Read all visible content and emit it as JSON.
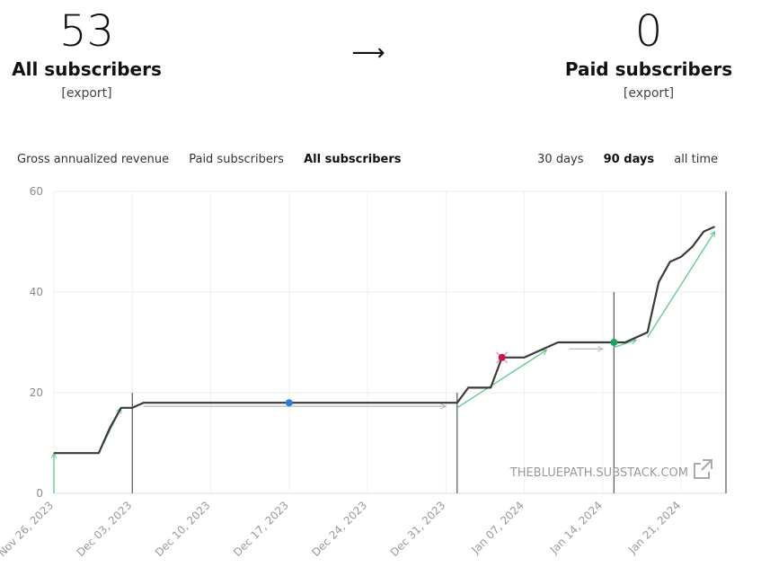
{
  "stats": {
    "all": {
      "value": "53",
      "label": "All subscribers",
      "export": "[export]"
    },
    "arrow": "⟶",
    "paid": {
      "value": "0",
      "label": "Paid subscribers",
      "export": "[export]"
    }
  },
  "tabs": [
    {
      "label": "Gross annualized revenue",
      "active": false
    },
    {
      "label": "Paid subscribers",
      "active": false
    },
    {
      "label": "All subscribers",
      "active": true
    }
  ],
  "ranges": [
    {
      "label": "30 days",
      "active": false
    },
    {
      "label": "90 days",
      "active": true
    },
    {
      "label": "all time",
      "active": false
    }
  ],
  "watermark": "THEBLUEPATH.SUBSTACK.COM",
  "colors": {
    "line": "#3a3a3a",
    "trend": "#5ec98a",
    "flat": "#b9b9b9",
    "blue": "#2a7fd4",
    "red": "#c8174f",
    "green": "#21a35a"
  },
  "chart_data": {
    "type": "line",
    "x_ticks": [
      "Nov 26, 2023",
      "Dec 03, 2023",
      "Dec 10, 2023",
      "Dec 17, 2023",
      "Dec 24, 2023",
      "Dec 31, 2023",
      "Jan 07, 2024",
      "Jan 14, 2024",
      "Jan 21, 2024"
    ],
    "y_ticks": [
      0,
      20,
      40,
      60
    ],
    "ylim": [
      0,
      60
    ],
    "xlim": [
      "2023-11-26",
      "2024-01-25"
    ],
    "series": [
      {
        "x": [
          "2023-11-26",
          "2023-11-29",
          "2023-11-30",
          "2023-12-01",
          "2023-12-02",
          "2023-12-03",
          "2023-12-04",
          "2023-12-31",
          "2024-01-01",
          "2024-01-02",
          "2024-01-04",
          "2024-01-05",
          "2024-01-07",
          "2024-01-10",
          "2024-01-13",
          "2024-01-15",
          "2024-01-16",
          "2024-01-17",
          "2024-01-18",
          "2024-01-19",
          "2024-01-20",
          "2024-01-21",
          "2024-01-22",
          "2024-01-23",
          "2024-01-24"
        ],
        "y": [
          8,
          8,
          8,
          13,
          17,
          17,
          18,
          18,
          18,
          21,
          21,
          27,
          27,
          30,
          30,
          30,
          30,
          31,
          32,
          42,
          46,
          47,
          49,
          52,
          53
        ]
      }
    ],
    "markers": [
      {
        "x": "2023-12-17",
        "y": 18,
        "color": "blue"
      },
      {
        "x": "2024-01-05",
        "y": 27,
        "color": "red"
      },
      {
        "x": "2024-01-15",
        "y": 30,
        "color": "green"
      }
    ]
  }
}
